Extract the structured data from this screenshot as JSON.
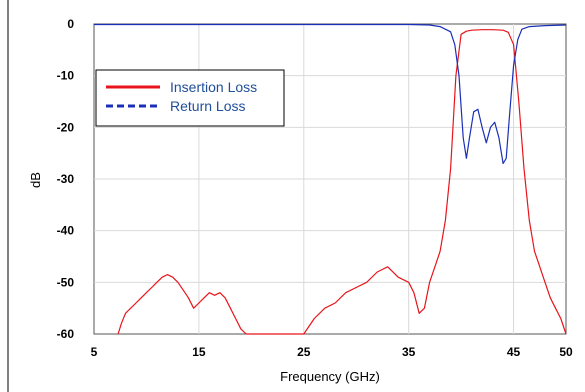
{
  "chart_data": {
    "type": "line",
    "title": "",
    "xlabel": "Frequency (GHz)",
    "ylabel": "dB",
    "xlim": [
      5,
      50
    ],
    "ylim": [
      -60,
      0
    ],
    "xticks": [
      5,
      15,
      25,
      35,
      45,
      50
    ],
    "yticks": [
      0,
      -10,
      -20,
      -30,
      -40,
      -50,
      -60
    ],
    "grid": true,
    "legend_position": "upper-left",
    "series": [
      {
        "name": "Insertion Loss",
        "color": "#e8141b",
        "style": "solid",
        "x": [
          7.3,
          7.6,
          8,
          8.5,
          9,
          9.5,
          10,
          10.5,
          11,
          11.5,
          12,
          12.5,
          13,
          13.5,
          14,
          14.5,
          15,
          15.5,
          16,
          16.5,
          17,
          17.5,
          18,
          18.5,
          19,
          19.5,
          20,
          25,
          26,
          27,
          28,
          29,
          30,
          31,
          32,
          33,
          34,
          35,
          35.5,
          36,
          36.5,
          37,
          37.5,
          38,
          38.5,
          39,
          39.5,
          40,
          40.5,
          41,
          42,
          43,
          44,
          44.5,
          45,
          45.5,
          46,
          46.5,
          47,
          47.5,
          48,
          48.5,
          49,
          49.5,
          50
        ],
        "y": [
          -60,
          -58,
          -56,
          -55,
          -54,
          -53,
          -52,
          -51,
          -50,
          -49,
          -48.5,
          -49,
          -50,
          -51.5,
          -53,
          -55,
          -54,
          -53,
          -52,
          -52.5,
          -52,
          -53,
          -55,
          -57,
          -59,
          -60,
          -60,
          -60,
          -57,
          -55,
          -54,
          -52,
          -51,
          -50,
          -48,
          -47,
          -49,
          -50,
          -52,
          -56,
          -55,
          -50,
          -47,
          -44,
          -38,
          -28,
          -10,
          -2,
          -1.4,
          -1.2,
          -1.1,
          -1.1,
          -1.2,
          -1.6,
          -4,
          -15,
          -28,
          -38,
          -44,
          -47,
          -50,
          -53,
          -55,
          -57,
          -60
        ]
      },
      {
        "name": "Return Loss",
        "color": "#1a2fb8",
        "style": "dashed",
        "x": [
          5,
          10,
          20,
          30,
          35,
          37,
          38,
          39,
          39.4,
          39.8,
          40.2,
          40.5,
          40.8,
          41.2,
          41.6,
          42,
          42.4,
          42.8,
          43.2,
          43.6,
          44,
          44.3,
          44.6,
          45,
          45.4,
          45.8,
          46.5,
          48,
          50
        ],
        "y": [
          -0.1,
          -0.1,
          -0.1,
          -0.1,
          -0.1,
          -0.2,
          -0.5,
          -1.5,
          -4,
          -10,
          -22,
          -26,
          -22,
          -17,
          -16.5,
          -20,
          -23,
          -20,
          -19,
          -22,
          -27,
          -26,
          -18,
          -8,
          -3,
          -1,
          -0.5,
          -0.3,
          -0.2
        ]
      }
    ]
  }
}
